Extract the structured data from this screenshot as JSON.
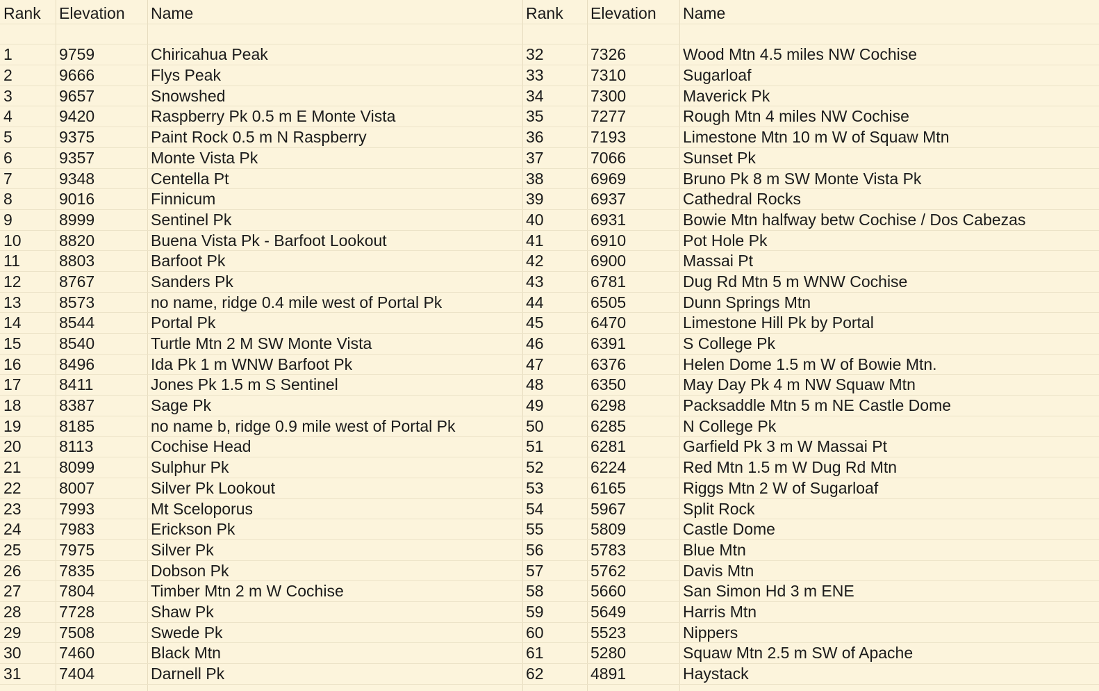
{
  "headers": [
    "Rank",
    "Elevation",
    "Name",
    "Rank",
    "Elevation",
    "Name"
  ],
  "left": [
    [
      "1",
      "9759",
      "Chiricahua Peak"
    ],
    [
      "2",
      "9666",
      "Flys Peak"
    ],
    [
      "3",
      "9657",
      "Snowshed"
    ],
    [
      "4",
      "9420",
      "Raspberry Pk  0.5 m E Monte Vista"
    ],
    [
      "5",
      "9375",
      "Paint Rock  0.5 m N Raspberry"
    ],
    [
      "6",
      "9357",
      "Monte Vista Pk"
    ],
    [
      "7",
      "9348",
      "Centella Pt"
    ],
    [
      "8",
      "9016",
      "Finnicum"
    ],
    [
      "9",
      "8999",
      "Sentinel Pk"
    ],
    [
      "10",
      "8820",
      "Buena Vista Pk - Barfoot Lookout"
    ],
    [
      "11",
      "8803",
      "Barfoot Pk"
    ],
    [
      "12",
      "8767",
      "Sanders Pk"
    ],
    [
      "13",
      "8573",
      "no name, ridge 0.4 mile west of Portal Pk"
    ],
    [
      "14",
      "8544",
      "Portal Pk"
    ],
    [
      "15",
      "8540",
      "Turtle Mtn  2 M SW Monte Vista"
    ],
    [
      "16",
      "8496",
      "Ida Pk 1 m WNW Barfoot Pk"
    ],
    [
      "17",
      "8411",
      "Jones Pk  1.5 m S Sentinel"
    ],
    [
      "18",
      "8387",
      "Sage Pk"
    ],
    [
      "19",
      "8185",
      "no name b, ridge 0.9 mile west of Portal Pk"
    ],
    [
      "20",
      "8113",
      "Cochise Head"
    ],
    [
      "21",
      "8099",
      "Sulphur Pk"
    ],
    [
      "22",
      "8007",
      "Silver Pk Lookout"
    ],
    [
      "23",
      "7993",
      "Mt Sceloporus"
    ],
    [
      "24",
      "7983",
      "Erickson Pk"
    ],
    [
      "25",
      "7975",
      "Silver Pk"
    ],
    [
      "26",
      "7835",
      "Dobson Pk"
    ],
    [
      "27",
      "7804",
      "Timber Mtn  2 m W Cochise"
    ],
    [
      "28",
      "7728",
      "Shaw Pk"
    ],
    [
      "29",
      "7508",
      "Swede Pk"
    ],
    [
      "30",
      "7460",
      "Black Mtn"
    ],
    [
      "31",
      "7404",
      "Darnell Pk"
    ]
  ],
  "right": [
    [
      "32",
      "7326",
      "Wood Mtn  4.5 miles NW Cochise"
    ],
    [
      "33",
      "7310",
      "Sugarloaf"
    ],
    [
      "34",
      "7300",
      "Maverick Pk"
    ],
    [
      "35",
      "7277",
      "Rough Mtn  4 miles NW Cochise"
    ],
    [
      "36",
      "7193",
      "Limestone Mtn  10 m W of Squaw Mtn"
    ],
    [
      "37",
      "7066",
      "Sunset Pk"
    ],
    [
      "38",
      "6969",
      "Bruno Pk 8 m SW Monte Vista Pk"
    ],
    [
      "39",
      "6937",
      "Cathedral Rocks"
    ],
    [
      "40",
      "6931",
      "Bowie Mtn  halfway betw Cochise / Dos Cabezas"
    ],
    [
      "41",
      "6910",
      "Pot Hole Pk"
    ],
    [
      "42",
      "6900",
      "Massai Pt"
    ],
    [
      "43",
      "6781",
      "Dug Rd Mtn 5 m WNW Cochise"
    ],
    [
      "44",
      "6505",
      "Dunn Springs Mtn"
    ],
    [
      "45",
      "6470",
      "Limestone Hill Pk by Portal"
    ],
    [
      "46",
      "6391",
      "S College Pk"
    ],
    [
      "47",
      "6376",
      "Helen Dome  1.5 m W of Bowie Mtn."
    ],
    [
      "48",
      "6350",
      "May Day Pk  4 m NW Squaw Mtn"
    ],
    [
      "49",
      "6298",
      "Packsaddle Mtn 5 m NE Castle Dome"
    ],
    [
      "50",
      "6285",
      "N College Pk"
    ],
    [
      "51",
      "6281",
      "Garfield Pk  3 m W Massai Pt"
    ],
    [
      "52",
      "6224",
      "Red Mtn  1.5 m W Dug Rd Mtn"
    ],
    [
      "53",
      "6165",
      "Riggs Mtn  2  W of Sugarloaf"
    ],
    [
      "54",
      "5967",
      "Split Rock"
    ],
    [
      "55",
      "5809",
      "Castle Dome"
    ],
    [
      "56",
      "5783",
      "Blue Mtn"
    ],
    [
      "57",
      "5762",
      "Davis Mtn"
    ],
    [
      "58",
      "5660",
      "San Simon Hd  3 m ENE"
    ],
    [
      "59",
      "5649",
      "Harris Mtn"
    ],
    [
      "60",
      "5523",
      "Nippers"
    ],
    [
      "61",
      "5280",
      "Squaw Mtn  2.5 m SW of Apache"
    ],
    [
      "62",
      "4891",
      "Haystack"
    ]
  ]
}
